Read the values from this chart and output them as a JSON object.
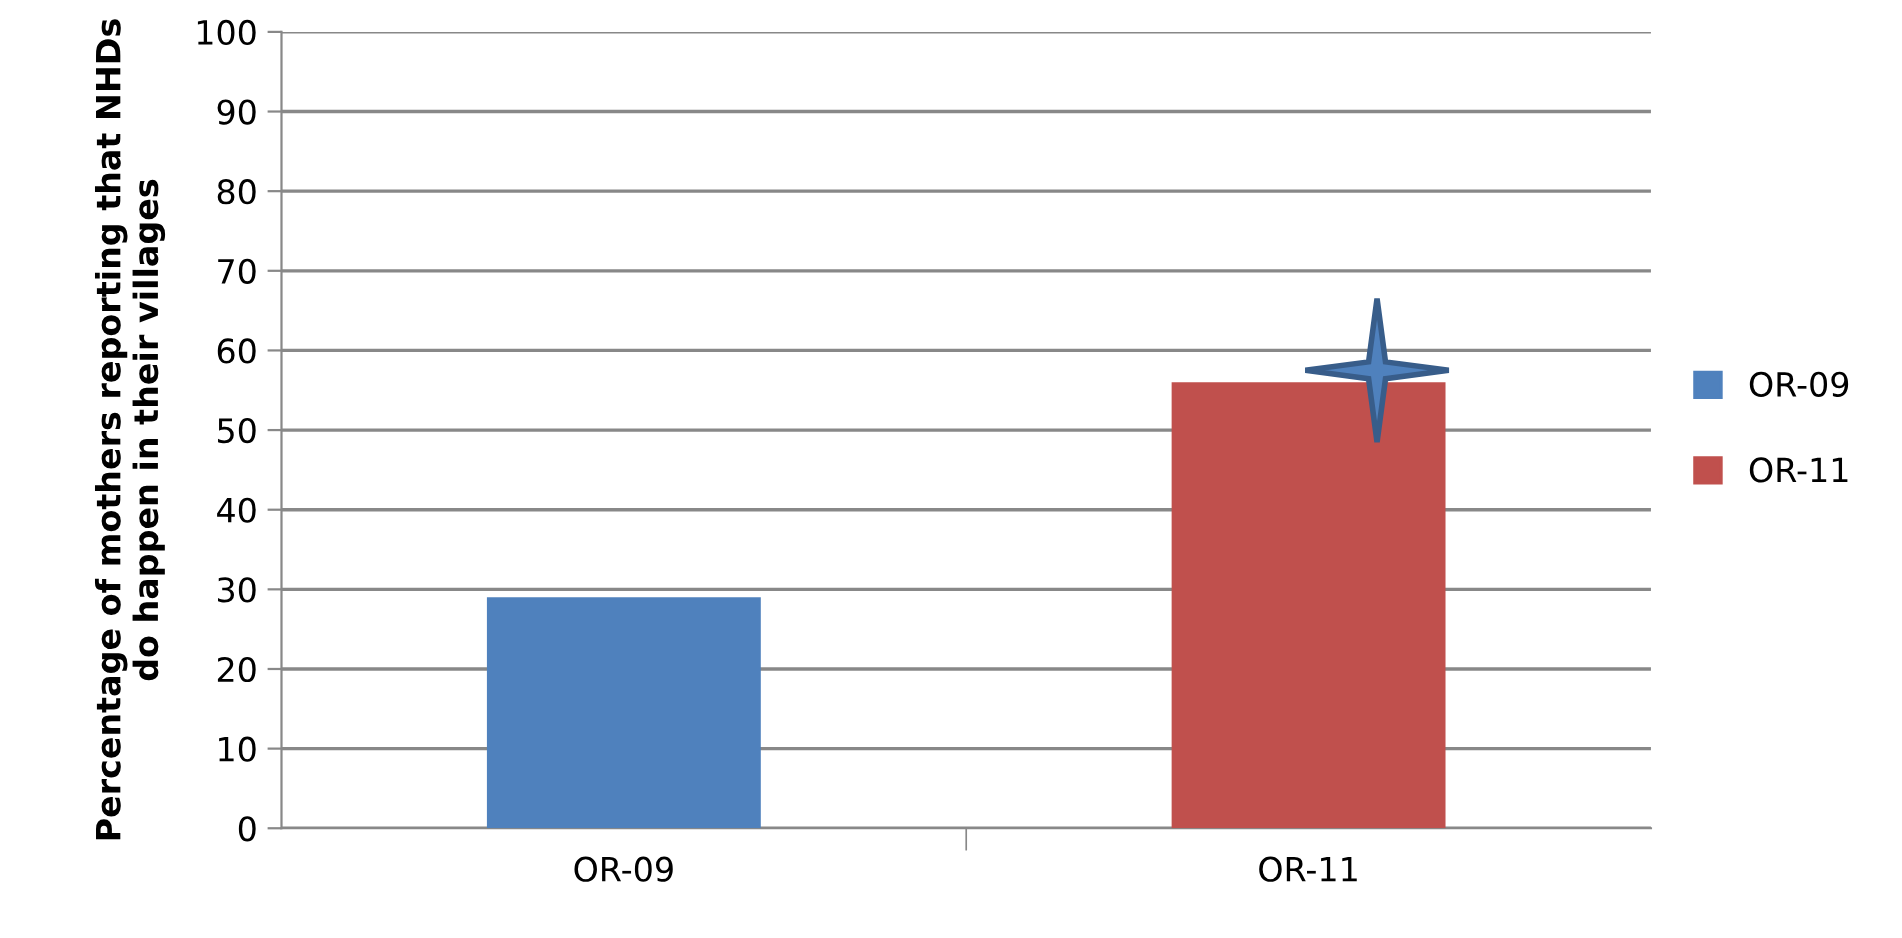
{
  "chart_data": {
    "type": "bar",
    "ylabel": "Percentage of mothers reporting that NHDs do happen in their villages",
    "categories": [
      "OR-09",
      "OR-11"
    ],
    "series": [
      {
        "name": "OR-09",
        "color": "#4f81bd",
        "values": [
          29,
          null
        ]
      },
      {
        "name": "OR-11",
        "color": "#c0504d",
        "values": [
          null,
          56
        ]
      }
    ],
    "ylim": [
      0,
      100
    ],
    "yticks": [
      0,
      10,
      20,
      30,
      40,
      50,
      60,
      70,
      80,
      90,
      100
    ],
    "grid": "y",
    "legend": "right"
  }
}
